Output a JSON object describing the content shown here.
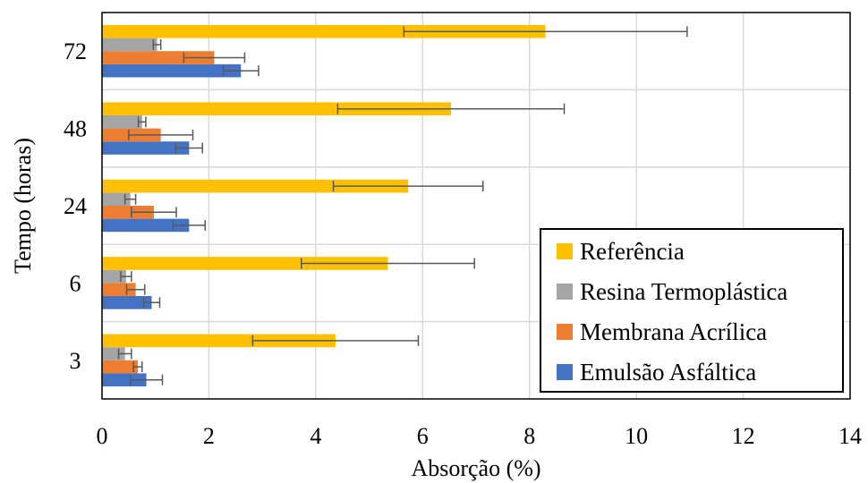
{
  "chart_data": {
    "type": "bar",
    "orientation": "horizontal",
    "title": "",
    "xlabel": "Absorção (%)",
    "ylabel": "Tempo (horas)",
    "xlim": [
      0,
      14
    ],
    "xticks": [
      "0",
      "2",
      "4",
      "6",
      "8",
      "10",
      "12",
      "14"
    ],
    "categories": [
      "3",
      "6",
      "24",
      "48",
      "72"
    ],
    "grid": "vertical",
    "legend_position": "bottom-right",
    "series": [
      {
        "name": "Emulsão Asfáltica",
        "color": "#4472C4",
        "values": [
          0.83,
          0.93,
          1.63,
          1.63,
          2.6
        ],
        "errors": [
          0.3,
          0.15,
          0.3,
          0.25,
          0.33
        ]
      },
      {
        "name": "Membrana Acrílica",
        "color": "#ED7D31",
        "values": [
          0.67,
          0.63,
          0.97,
          1.1,
          2.1
        ],
        "errors": [
          0.08,
          0.17,
          0.42,
          0.6,
          0.57
        ]
      },
      {
        "name": "Resina Termoplástica",
        "color": "#A5A5A5",
        "values": [
          0.43,
          0.45,
          0.53,
          0.75,
          1.03
        ],
        "errors": [
          0.12,
          0.1,
          0.1,
          0.07,
          0.07
        ]
      },
      {
        "name": "Referência",
        "color": "#FFC000",
        "values": [
          4.37,
          5.35,
          5.73,
          6.53,
          8.3
        ],
        "errors": [
          1.55,
          1.62,
          1.4,
          2.12,
          2.65
        ]
      }
    ]
  }
}
